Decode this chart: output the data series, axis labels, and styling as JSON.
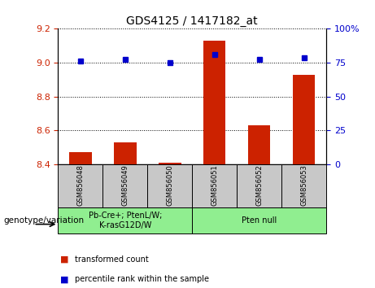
{
  "title": "GDS4125 / 1417182_at",
  "samples": [
    "GSM856048",
    "GSM856049",
    "GSM856050",
    "GSM856051",
    "GSM856052",
    "GSM856053"
  ],
  "red_values": [
    8.47,
    8.53,
    8.41,
    9.13,
    8.63,
    8.93
  ],
  "blue_values": [
    9.01,
    9.02,
    9.0,
    9.05,
    9.02,
    9.03
  ],
  "ylim": [
    8.4,
    9.2
  ],
  "y2lim": [
    0,
    100
  ],
  "yticks": [
    8.4,
    8.6,
    8.8,
    9.0,
    9.2
  ],
  "y2ticks": [
    0,
    25,
    50,
    75,
    100
  ],
  "y2ticklabels": [
    "0",
    "25",
    "50",
    "75",
    "100%"
  ],
  "bar_color": "#cc2200",
  "dot_color": "#0000cc",
  "bar_bottom": 8.4,
  "background_sample": "#c8c8c8",
  "group1_color": "#90EE90",
  "group1_label": "Pb-Cre+; PtenL/W;\nK-rasG12D/W",
  "group2_color": "#90EE90",
  "group2_label": "Pten null",
  "legend_red": "transformed count",
  "legend_blue": "percentile rank within the sample",
  "genotype_label": "genotype/variation"
}
